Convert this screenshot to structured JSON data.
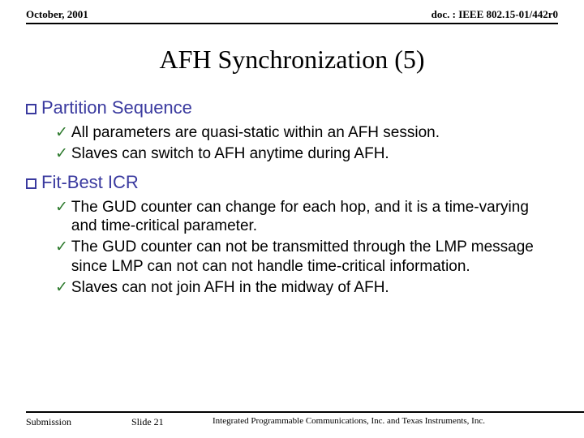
{
  "header": {
    "left": "October, 2001",
    "right": "doc. : IEEE 802.15-01/442r0"
  },
  "title": "AFH Synchronization (5)",
  "sections": [
    {
      "heading": "Partition Sequence",
      "items": [
        "All parameters are quasi-static within an AFH session.",
        "Slaves can switch to AFH anytime during AFH."
      ]
    },
    {
      "heading": "Fit-Best ICR",
      "items": [
        "The GUD counter can change for each hop, and it is a time-varying and time-critical parameter.",
        "The GUD counter can not be transmitted through the LMP message since LMP can not can not handle time-critical information.",
        "Slaves can not join AFH in the midway of AFH."
      ]
    }
  ],
  "footer": {
    "left": "Submission",
    "mid": "Slide 21",
    "right": "Integrated Programmable Communications, Inc. and Texas Instruments, Inc."
  },
  "colors": {
    "heading": "#3a3a9f",
    "check": "#2d7a2d",
    "text": "#000000",
    "background": "#ffffff"
  },
  "fonts": {
    "header_family": "Times New Roman",
    "body_family": "Arial",
    "title_size_pt": 32,
    "heading_size_pt": 22,
    "item_size_pt": 19,
    "header_size_pt": 13,
    "footer_size_pt": 12
  }
}
